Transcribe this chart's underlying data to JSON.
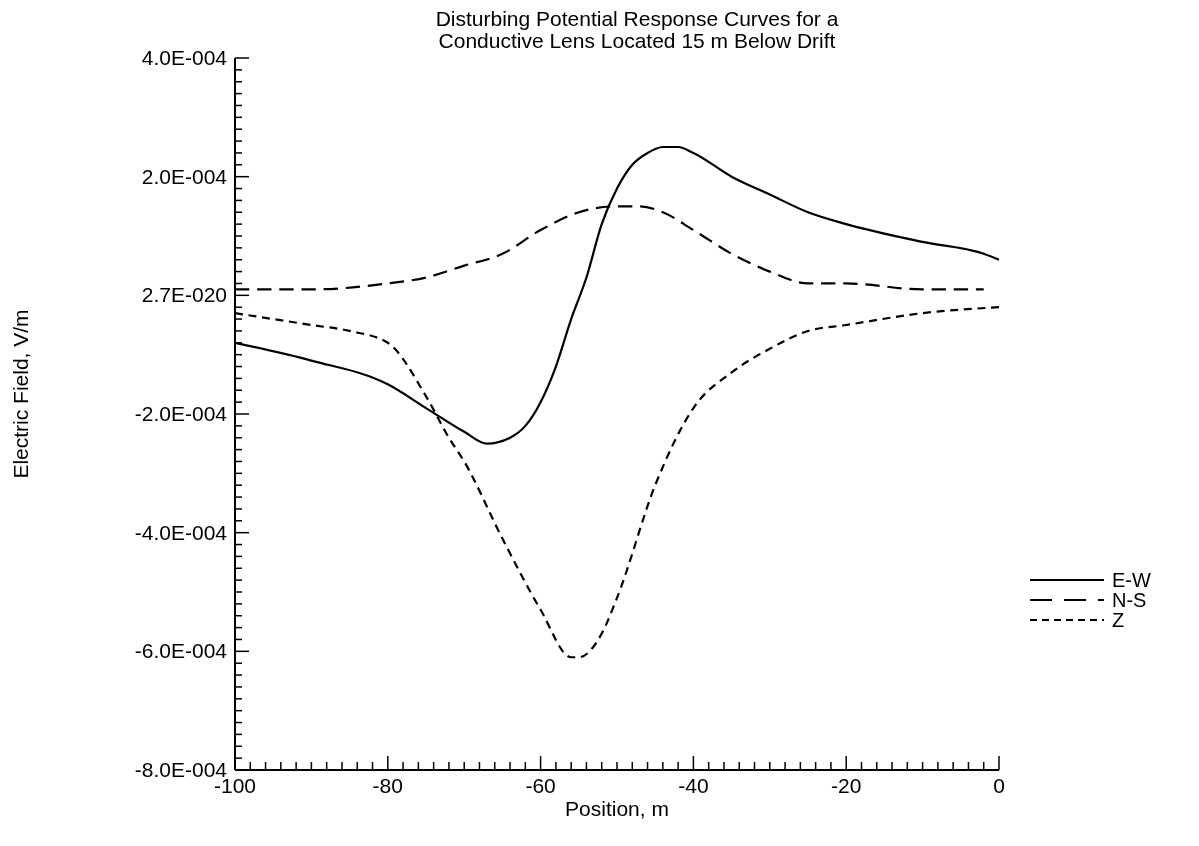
{
  "chart_data": {
    "type": "line",
    "title": "Disturbing Potential Response Curves for a\nConductive Lens Located 15 m Below Drift",
    "xlabel": "Position,  m",
    "ylabel": "Electric Field, V/m",
    "legend": "right",
    "marker": "none",
    "grid": false,
    "xlim": [
      -100,
      0
    ],
    "ylim": [
      -0.0008,
      0.0004
    ],
    "xticks": [
      -100,
      {
        "value": -98,
        "label": null
      },
      {
        "value": -96,
        "label": null
      },
      {
        "value": -94,
        "label": null
      },
      {
        "value": -92,
        "label": null
      },
      {
        "value": -90,
        "label": null
      },
      {
        "value": -88,
        "label": null
      },
      {
        "value": -86,
        "label": null
      },
      {
        "value": -84,
        "label": null
      },
      {
        "value": -82,
        "label": null
      },
      -80,
      {
        "value": -78,
        "label": null
      },
      {
        "value": -76,
        "label": null
      },
      {
        "value": -74,
        "label": null
      },
      {
        "value": -72,
        "label": null
      },
      {
        "value": -70,
        "label": null
      },
      {
        "value": -68,
        "label": null
      },
      {
        "value": -66,
        "label": null
      },
      {
        "value": -64,
        "label": null
      },
      {
        "value": -62,
        "label": null
      },
      -60,
      {
        "value": -58,
        "label": null
      },
      {
        "value": -56,
        "label": null
      },
      {
        "value": -54,
        "label": null
      },
      {
        "value": -52,
        "label": null
      },
      {
        "value": -50,
        "label": null
      },
      {
        "value": -48,
        "label": null
      },
      {
        "value": -46,
        "label": null
      },
      {
        "value": -44,
        "label": null
      },
      {
        "value": -42,
        "label": null
      },
      -40,
      {
        "value": -38,
        "label": null
      },
      {
        "value": -36,
        "label": null
      },
      {
        "value": -34,
        "label": null
      },
      {
        "value": -32,
        "label": null
      },
      {
        "value": -30,
        "label": null
      },
      {
        "value": -28,
        "label": null
      },
      {
        "value": -26,
        "label": null
      },
      {
        "value": -24,
        "label": null
      },
      {
        "value": -22,
        "label": null
      },
      -20,
      {
        "value": -18,
        "label": null
      },
      {
        "value": -16,
        "label": null
      },
      {
        "value": -14,
        "label": null
      },
      {
        "value": -12,
        "label": null
      },
      {
        "value": -10,
        "label": null
      },
      {
        "value": -8,
        "label": null
      },
      {
        "value": -6,
        "label": null
      },
      {
        "value": -4,
        "label": null
      },
      {
        "value": -2,
        "label": null
      },
      0
    ],
    "yticks": [
      {
        "value": -0.0008,
        "label": "-8.0E-004"
      },
      {
        "value": -0.00078,
        "label": null
      },
      {
        "value": -0.00076,
        "label": null
      },
      {
        "value": -0.00074,
        "label": null
      },
      {
        "value": -0.00072,
        "label": null
      },
      {
        "value": -0.0007,
        "label": null
      },
      {
        "value": -0.00068,
        "label": null
      },
      {
        "value": -0.00066,
        "label": null
      },
      {
        "value": -0.00064,
        "label": null
      },
      {
        "value": -0.00062,
        "label": null
      },
      {
        "value": -0.0006,
        "label": "-6.0E-004"
      },
      {
        "value": -0.00058,
        "label": null
      },
      {
        "value": -0.00056,
        "label": null
      },
      {
        "value": -0.00054,
        "label": null
      },
      {
        "value": -0.00052,
        "label": null
      },
      {
        "value": -0.0005,
        "label": null
      },
      {
        "value": -0.00048,
        "label": null
      },
      {
        "value": -0.00046,
        "label": null
      },
      {
        "value": -0.00044,
        "label": null
      },
      {
        "value": -0.00042,
        "label": null
      },
      {
        "value": -0.0004,
        "label": "-4.0E-004"
      },
      {
        "value": -0.00038,
        "label": null
      },
      {
        "value": -0.00036,
        "label": null
      },
      {
        "value": -0.00034,
        "label": null
      },
      {
        "value": -0.00032,
        "label": null
      },
      {
        "value": -0.0003,
        "label": null
      },
      {
        "value": -0.00028,
        "label": null
      },
      {
        "value": -0.00026,
        "label": null
      },
      {
        "value": -0.00024,
        "label": null
      },
      {
        "value": -0.00022,
        "label": null
      },
      {
        "value": -0.0002,
        "label": "-2.0E-004"
      },
      {
        "value": -0.00018,
        "label": null
      },
      {
        "value": -0.00016,
        "label": null
      },
      {
        "value": -0.00014,
        "label": null
      },
      {
        "value": -0.00012,
        "label": null
      },
      {
        "value": -0.0001,
        "label": null
      },
      {
        "value": -8e-05,
        "label": null
      },
      {
        "value": -6e-05,
        "label": null
      },
      {
        "value": -4e-05,
        "label": null
      },
      {
        "value": -2e-05,
        "label": null
      },
      {
        "value": 0,
        "label": "2.7E-020"
      },
      {
        "value": 2e-05,
        "label": null
      },
      {
        "value": 4e-05,
        "label": null
      },
      {
        "value": 6e-05,
        "label": null
      },
      {
        "value": 8e-05,
        "label": null
      },
      {
        "value": 0.0001,
        "label": null
      },
      {
        "value": 0.00012,
        "label": null
      },
      {
        "value": 0.00014,
        "label": null
      },
      {
        "value": 0.00016,
        "label": null
      },
      {
        "value": 0.00018,
        "label": null
      },
      {
        "value": 0.0002,
        "label": "2.0E-004"
      },
      {
        "value": 0.00022,
        "label": null
      },
      {
        "value": 0.00024,
        "label": null
      },
      {
        "value": 0.00026,
        "label": null
      },
      {
        "value": 0.00028,
        "label": null
      },
      {
        "value": 0.0003,
        "label": null
      },
      {
        "value": 0.00032,
        "label": null
      },
      {
        "value": 0.00034,
        "label": null
      },
      {
        "value": 0.00036,
        "label": null
      },
      {
        "value": 0.00038,
        "label": null
      },
      {
        "value": 0.0004,
        "label": "4.0E-004"
      }
    ],
    "series": [
      {
        "name": "E-W",
        "color": "#000000",
        "line_style": "solid",
        "x": [
          -100,
          -90,
          -80,
          -75,
          -70,
          -67,
          -64,
          -62,
          -60,
          -58,
          -56,
          -54,
          -52,
          -50,
          -48,
          -46,
          -44,
          -42,
          -40,
          -35,
          -30,
          -25,
          -20,
          -10,
          -2,
          0
        ],
        "values": [
          -8e-05,
          -0.00011,
          -0.00015,
          -0.00019,
          -0.00023,
          -0.00025,
          -0.00024,
          -0.00022,
          -0.00018,
          -0.00012,
          -4e-05,
          3e-05,
          0.00012,
          0.00018,
          0.00022,
          0.00024,
          0.00025,
          0.00025,
          0.00024,
          0.0002,
          0.00017,
          0.00014,
          0.00012,
          9e-05,
          7e-05,
          6e-05
        ]
      },
      {
        "name": "N-S",
        "color": "#000000",
        "line_style": "dashed",
        "x": [
          -100,
          -90,
          -80,
          -75,
          -70,
          -65,
          -60,
          -55,
          -50,
          -47,
          -44,
          -40,
          -35,
          -30,
          -25,
          -20,
          -10,
          -2
        ],
        "values": [
          1e-05,
          1e-05,
          2e-05,
          3e-05,
          5e-05,
          7e-05,
          0.00011,
          0.00014,
          0.00015,
          0.00015,
          0.00014,
          0.00011,
          7e-05,
          4e-05,
          2e-05,
          2e-05,
          1e-05,
          1e-05
        ]
      },
      {
        "name": "Z",
        "color": "#000000",
        "line_style": "dotted",
        "x": [
          -100,
          -90,
          -85,
          -80,
          -75,
          -72,
          -70,
          -65,
          -60,
          -56,
          -55,
          -52,
          -50,
          -45,
          -40,
          -35,
          -30,
          -25,
          -20,
          -10,
          0
        ],
        "values": [
          -3e-05,
          -5e-05,
          -6e-05,
          -8e-05,
          -0.00017,
          -0.00024,
          -0.00028,
          -0.00041,
          -0.00053,
          -0.00061,
          -0.00061,
          -0.00057,
          -0.00051,
          -0.00032,
          -0.00019,
          -0.00013,
          -9e-05,
          -6e-05,
          -5e-05,
          -3e-05,
          -2e-05
        ]
      }
    ]
  }
}
